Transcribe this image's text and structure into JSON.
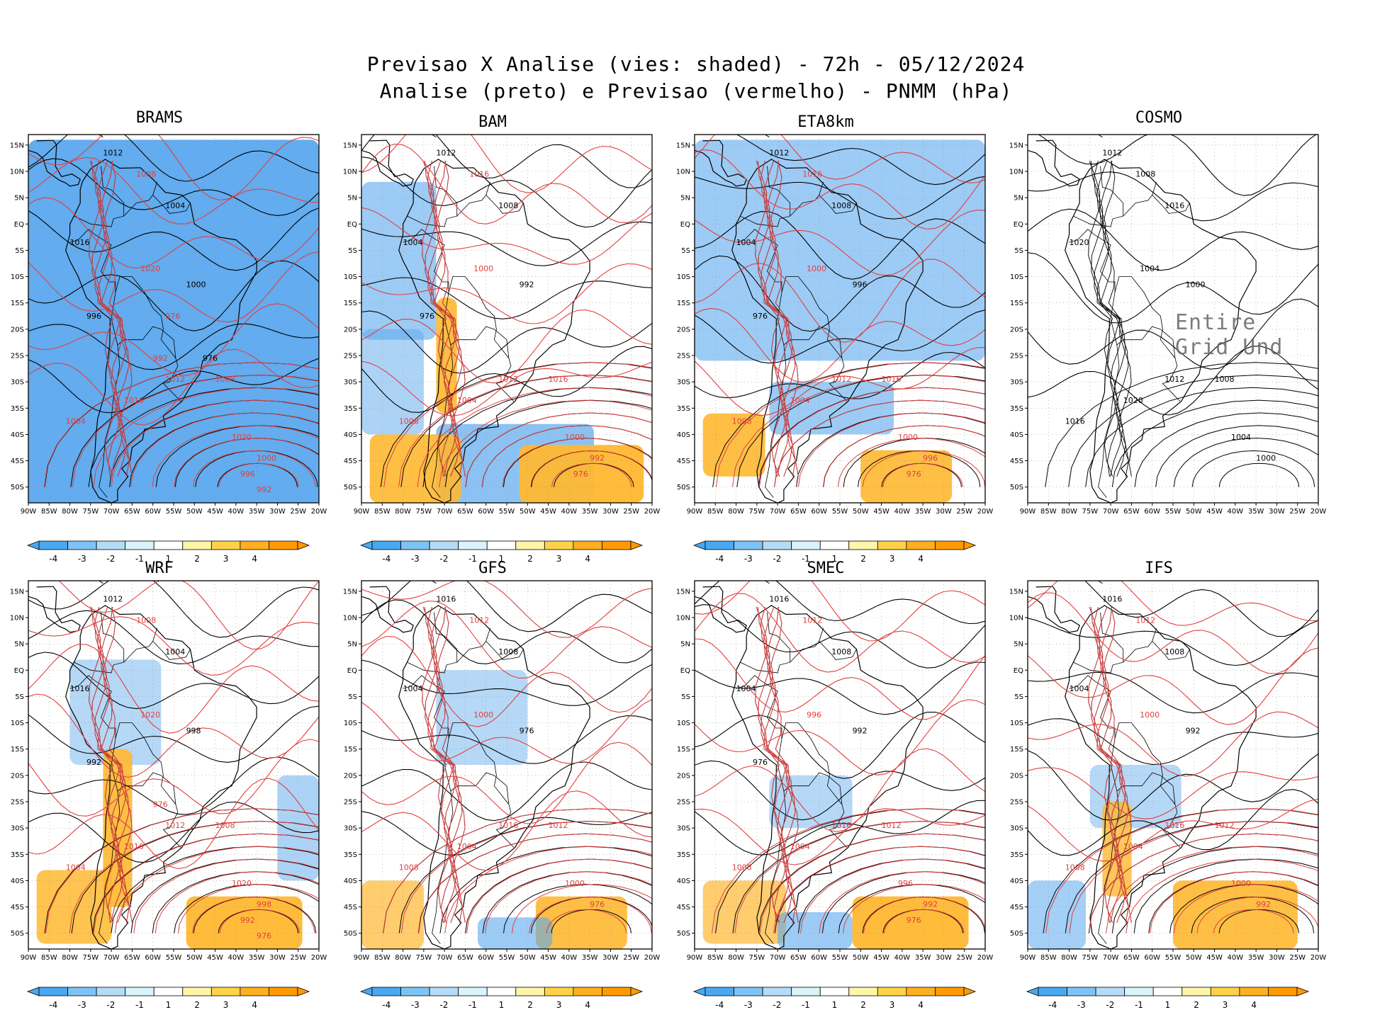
{
  "title": {
    "line1": "Previsao X Analise (vies: shaded) - 72h - 05/12/2024",
    "line2": "Analise (preto) e Previsao (vermelho) - PNMM (hPa)"
  },
  "lat_labels": [
    "15N",
    "10N",
    "5N",
    "EQ",
    "5S",
    "10S",
    "15S",
    "20S",
    "25S",
    "30S",
    "35S",
    "40S",
    "45S",
    "50S"
  ],
  "lon_labels": [
    "90W",
    "85W",
    "80W",
    "75W",
    "70W",
    "65W",
    "60W",
    "55W",
    "50W",
    "45W",
    "40W",
    "35W",
    "30W",
    "25W",
    "20W"
  ],
  "colorbar": {
    "ticks": [
      "-4",
      "-3",
      "-2",
      "-1",
      "1",
      "2",
      "3",
      "4"
    ],
    "colors": [
      "#4aa8f0",
      "#7ec3f5",
      "#b5dcf7",
      "#d9f3fb",
      "#ffffff",
      "#fff5a8",
      "#ffd24a",
      "#ffb020",
      "#ff9a00"
    ]
  },
  "colors": {
    "analysis": "#000000",
    "forecast": "#e04040",
    "bias_neg": "#5aa8ee",
    "bias_pos": "#ffb830"
  },
  "panels": [
    {
      "name": "BRAMS",
      "shaded": true,
      "labels": [
        "1012",
        "1008",
        "1004",
        "1016",
        "1020",
        "1000",
        "996",
        "992",
        "976"
      ]
    },
    {
      "name": "BAM",
      "shaded": true,
      "labels": [
        "1012",
        "1016",
        "1008",
        "1004",
        "1000",
        "992",
        "976"
      ]
    },
    {
      "name": "ETA8km",
      "shaded": true,
      "labels": [
        "1012",
        "1016",
        "1008",
        "1004",
        "1000",
        "996",
        "976"
      ]
    },
    {
      "name": "COSMO",
      "shaded": false,
      "watermark": "Entire Grid Und",
      "labels": [
        "1012",
        "1008",
        "1016",
        "1020",
        "1004",
        "1000"
      ]
    },
    {
      "name": "WRF",
      "shaded": true,
      "labels": [
        "1012",
        "1008",
        "1004",
        "1016",
        "1020",
        "998",
        "992",
        "976"
      ]
    },
    {
      "name": "GFS",
      "shaded": true,
      "labels": [
        "1016",
        "1012",
        "1008",
        "1004",
        "1000",
        "976"
      ]
    },
    {
      "name": "SMEC",
      "shaded": true,
      "labels": [
        "1016",
        "1012",
        "1008",
        "1004",
        "996",
        "992",
        "976"
      ]
    },
    {
      "name": "IFS",
      "shaded": true,
      "labels": [
        "1016",
        "1012",
        "1008",
        "1004",
        "1000",
        "992"
      ]
    }
  ]
}
